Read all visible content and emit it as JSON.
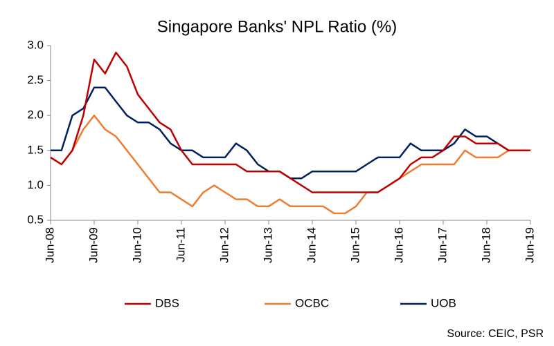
{
  "chart_data": {
    "type": "line",
    "title": "Singapore Banks' NPL Ratio (%)",
    "categories": [
      "Jun-08",
      null,
      null,
      null,
      "Jun-09",
      null,
      null,
      null,
      "Jun-10",
      null,
      null,
      null,
      "Jun-11",
      null,
      null,
      null,
      "Jun-12",
      null,
      null,
      null,
      "Jun-13",
      null,
      null,
      null,
      "Jun-14",
      null,
      null,
      null,
      "Jun-15",
      null,
      null,
      null,
      "Jun-16",
      null,
      null,
      null,
      "Jun-17",
      null,
      null,
      null,
      "Jun-18",
      null,
      null,
      null,
      "Jun-19"
    ],
    "series": [
      {
        "name": "DBS",
        "color": "#c00000",
        "values": [
          1.4,
          1.3,
          1.5,
          2.0,
          2.8,
          2.6,
          2.9,
          2.7,
          2.3,
          2.1,
          1.9,
          1.8,
          1.5,
          1.3,
          1.3,
          1.3,
          1.3,
          1.3,
          1.2,
          1.2,
          1.2,
          1.2,
          1.1,
          1.0,
          0.9,
          0.9,
          0.9,
          0.9,
          0.9,
          0.9,
          0.9,
          1.0,
          1.1,
          1.3,
          1.4,
          1.4,
          1.5,
          1.7,
          1.7,
          1.6,
          1.6,
          1.6,
          1.5,
          1.5,
          1.5
        ]
      },
      {
        "name": "OCBC",
        "color": "#ed7d31",
        "values": [
          1.4,
          1.3,
          1.5,
          1.8,
          2.0,
          1.8,
          1.7,
          1.5,
          1.3,
          1.1,
          0.9,
          0.9,
          0.8,
          0.7,
          0.9,
          1.0,
          0.9,
          0.8,
          0.8,
          0.7,
          0.7,
          0.8,
          0.7,
          0.7,
          0.7,
          0.7,
          0.6,
          0.6,
          0.7,
          0.9,
          0.9,
          1.0,
          1.1,
          1.2,
          1.3,
          1.3,
          1.3,
          1.3,
          1.5,
          1.4,
          1.4,
          1.4,
          1.5,
          1.5,
          1.5
        ]
      },
      {
        "name": "UOB",
        "color": "#002060",
        "values": [
          1.5,
          1.5,
          2.0,
          2.1,
          2.4,
          2.4,
          2.2,
          2.0,
          1.9,
          1.9,
          1.8,
          1.6,
          1.5,
          1.5,
          1.4,
          1.4,
          1.4,
          1.6,
          1.5,
          1.3,
          1.2,
          1.2,
          1.1,
          1.1,
          1.2,
          1.2,
          1.2,
          1.2,
          1.2,
          1.3,
          1.4,
          1.4,
          1.4,
          1.6,
          1.5,
          1.5,
          1.5,
          1.6,
          1.8,
          1.7,
          1.7,
          1.6,
          1.5,
          1.5,
          1.5
        ]
      }
    ],
    "ylim": [
      0.5,
      3.0
    ],
    "yticks": [
      0.5,
      {
        "value": 1,
        "label": "1.0"
      },
      1.5,
      {
        "value": 2,
        "label": "2.0"
      },
      2.5,
      {
        "value": 3,
        "label": "3.0"
      }
    ],
    "grid": false,
    "legend": "bottom",
    "source": "Source: CEIC, PSR"
  }
}
